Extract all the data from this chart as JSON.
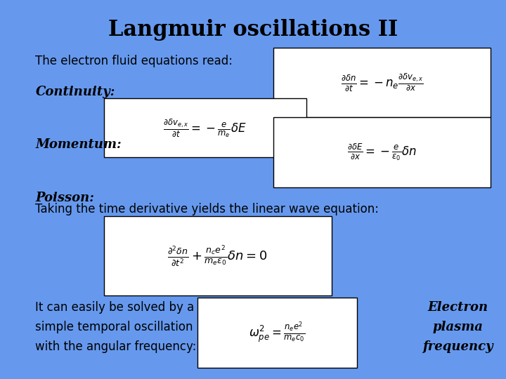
{
  "background_color": "#6699ee",
  "title": "Langmuir oscillations II",
  "title_fontsize": 22,
  "title_fontstyle": "bold",
  "text_color": "black",
  "box_facecolor": "white",
  "box_edgecolor": "black",
  "intro_text": "The electron fluid equations read:",
  "continuity_label": "Continuity:",
  "momentum_label": "Momentum:",
  "poisson_label": "Poisson:",
  "eq_continuity_right": "$\\frac{\\partial \\delta n}{\\partial t} = -n_e \\frac{\\partial \\delta v_{e,x}}{\\partial x}$",
  "eq_momentum": "$\\frac{\\partial \\delta v_{e,x}}{\\partial t} = -\\frac{e}{m_e} \\delta E$",
  "eq_poisson_right": "$\\frac{\\partial \\delta E}{\\partial x} = -\\frac{e}{\\epsilon_0} \\delta n$",
  "wave_text": "Taking the time derivative yields the linear wave equation:",
  "eq_wave": "$\\frac{\\partial^2 \\delta n}{\\partial t^2} + \\frac{n_c e^2}{m_e \\epsilon_0} \\delta n = 0$",
  "bottom_text_left": "It can easily be solved by a\nsimple temporal oscillation\nwith the angular frequency:",
  "eq_plasma_freq": "$\\omega_{pe}^2 = \\frac{n_e e^2}{m_e c_0}$",
  "bottom_text_right": "Electron\nplasma\nfrequency"
}
